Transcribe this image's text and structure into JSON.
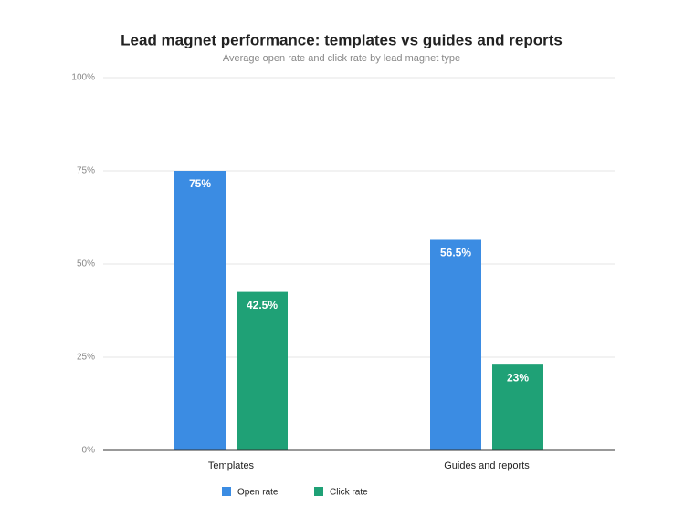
{
  "chart_data": {
    "type": "bar",
    "title": "Lead magnet performance: templates vs guides and reports",
    "subtitle": "Average open rate and click rate by lead magnet type",
    "categories": [
      "Templates",
      "Guides and reports"
    ],
    "series": [
      {
        "name": "Open rate",
        "color": "#3b8ce3",
        "values": [
          75,
          56.5
        ],
        "value_labels": [
          "75%",
          "56.5%"
        ]
      },
      {
        "name": "Click rate",
        "color": "#1fa176",
        "values": [
          42.5,
          23
        ],
        "value_labels": [
          "42.5%",
          "23%"
        ]
      }
    ],
    "ylim": [
      0,
      100
    ],
    "yticks": [
      {
        "value": 0,
        "label": "0%"
      },
      {
        "value": 25,
        "label": "25%"
      },
      {
        "value": 50,
        "label": "50%"
      },
      {
        "value": 75,
        "label": "75%"
      },
      {
        "value": 100,
        "label": "100%"
      }
    ],
    "grid": true,
    "legend": "bottom"
  }
}
